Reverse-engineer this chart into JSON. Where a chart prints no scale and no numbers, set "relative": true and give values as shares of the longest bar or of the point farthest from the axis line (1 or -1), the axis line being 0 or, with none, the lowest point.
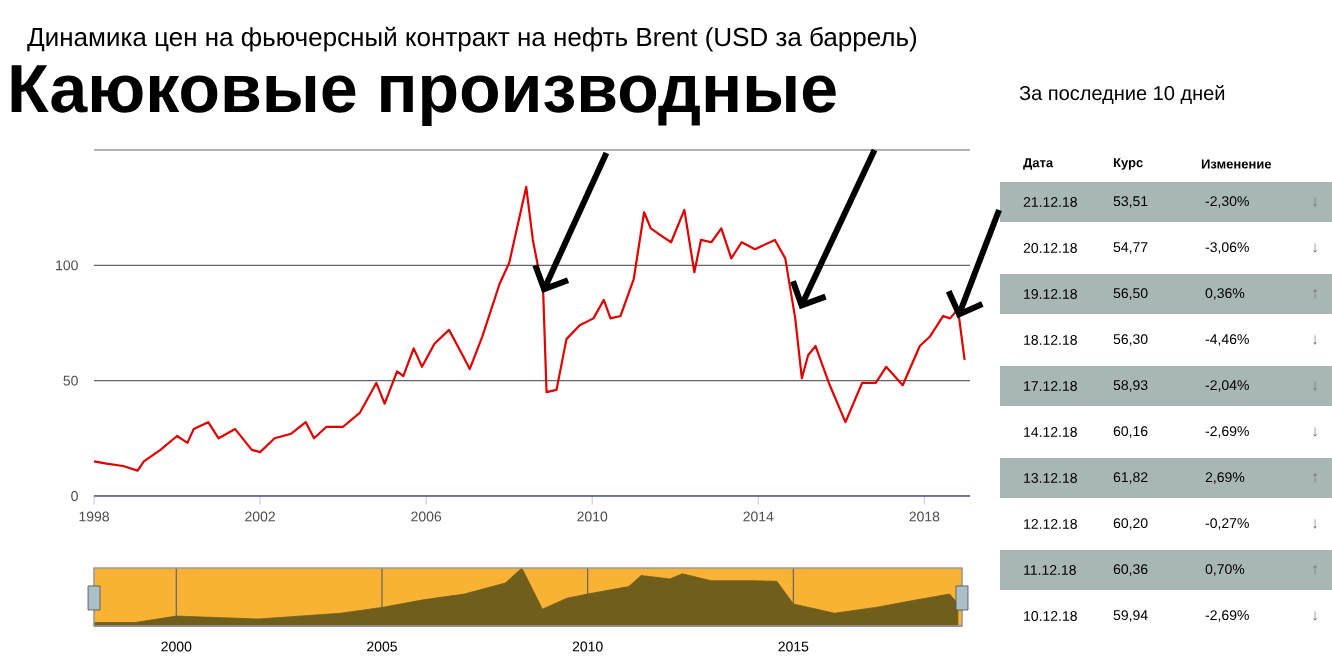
{
  "chart_data": [
    {
      "type": "line",
      "title": "Динамика цен на фьючерсный контракт на нефть Brent (USD за баррель)",
      "annotations": [
        {
          "text": "Каюковые производные",
          "x": 2008.8,
          "y": 88
        }
      ],
      "xlim": [
        1998,
        2019.1
      ],
      "ylim": [
        0,
        150
      ],
      "xticks": [
        1998,
        2002,
        2006,
        2010,
        2014,
        2018
      ],
      "yticks": [
        0,
        50,
        100,
        {
          "value": 150,
          "label": null
        }
      ],
      "grid": "y",
      "series": [
        {
          "color": "#e00000",
          "x": [
            1998.0,
            1998.3,
            1998.7,
            1999.05,
            1999.2,
            1999.6,
            2000.0,
            2000.25,
            2000.4,
            2000.75,
            2001.0,
            2001.4,
            2001.8,
            2002.0,
            2002.35,
            2002.75,
            2003.1,
            2003.3,
            2003.6,
            2004.0,
            2004.4,
            2004.8,
            2005.0,
            2005.3,
            2005.45,
            2005.7,
            2005.9,
            2006.2,
            2006.55,
            2006.85,
            2007.05,
            2007.35,
            2007.77,
            2008.0,
            2008.41,
            2008.57,
            2008.82,
            2008.9,
            2009.14,
            2009.38,
            2009.7,
            2010.03,
            2010.28,
            2010.44,
            2010.68,
            2011.0,
            2011.25,
            2011.41,
            2011.65,
            2011.9,
            2012.22,
            2012.46,
            2012.62,
            2012.87,
            2013.11,
            2013.35,
            2013.6,
            2013.92,
            2014.4,
            2014.65,
            2014.89,
            2015.05,
            2015.2,
            2015.38,
            2015.7,
            2016.1,
            2016.5,
            2016.83,
            2017.08,
            2017.48,
            2017.89,
            2018.13,
            2018.45,
            2018.62,
            2018.81,
            2018.97
          ],
          "values": [
            15,
            14,
            13,
            11,
            15,
            20,
            26,
            23,
            29,
            32,
            25,
            29,
            20,
            19,
            25,
            27,
            32,
            25,
            30,
            30,
            36,
            49,
            40,
            54,
            52,
            64,
            56,
            66,
            72,
            62,
            55,
            69,
            92,
            101,
            134,
            111,
            88,
            45,
            46,
            68,
            74,
            77,
            85,
            77,
            78,
            94,
            123,
            116,
            113,
            110,
            124,
            97,
            111,
            110,
            116,
            103,
            110,
            107,
            111,
            103,
            77,
            51,
            61,
            65,
            49,
            32,
            49,
            49,
            56,
            48,
            65,
            69,
            78,
            77,
            81,
            59
          ]
        }
      ]
    },
    {
      "type": "area",
      "relative": true,
      "xlim": [
        1998,
        2019.1
      ],
      "xticks": [
        2000,
        2005,
        2010,
        2015
      ],
      "grid": "x",
      "tick_labels": "x",
      "series": [
        {
          "color": "#6f5e1c",
          "x": [
            1998,
            1999,
            2000,
            2002,
            2003,
            2004,
            2005,
            2006,
            2007,
            2008,
            2008.4,
            2008.9,
            2009.5,
            2010,
            2011,
            2011.3,
            2012,
            2012.3,
            2013,
            2014,
            2014.6,
            2015,
            2016,
            2017,
            2018,
            2018.8,
            2019
          ],
          "values": [
            0.06,
            0.06,
            0.17,
            0.12,
            0.17,
            0.22,
            0.32,
            0.45,
            0.55,
            0.74,
            1,
            0.29,
            0.48,
            0.55,
            0.68,
            0.87,
            0.81,
            0.9,
            0.78,
            0.78,
            0.77,
            0.38,
            0.22,
            0.32,
            0.45,
            0.55,
            0.38
          ]
        }
      ]
    },
    {
      "type": "other",
      "title": "За последние 10 дней",
      "annotations": [
        "Дата",
        "Курс",
        "Изменение",
        "21.12.18",
        "53,51",
        "-2,30%",
        "↓",
        "20.12.18",
        "54,77",
        "-3,06%",
        "↓",
        "19.12.18",
        "56,50",
        "0,36%",
        "↑",
        "18.12.18",
        "56,30",
        "-4,46%",
        "↓",
        "17.12.18",
        "58,93",
        "-2,04%",
        "↓",
        "14.12.18",
        "60,16",
        "-2,69%",
        "↓",
        "13.12.18",
        "61,82",
        "2,69%",
        "↑",
        "12.12.18",
        "60,20",
        "-0,27%",
        "↓",
        "11.12.18",
        "60,36",
        "0,70%",
        "↑",
        "10.12.18",
        "59,94",
        "-2,69%",
        "↓"
      ]
    }
  ]
}
